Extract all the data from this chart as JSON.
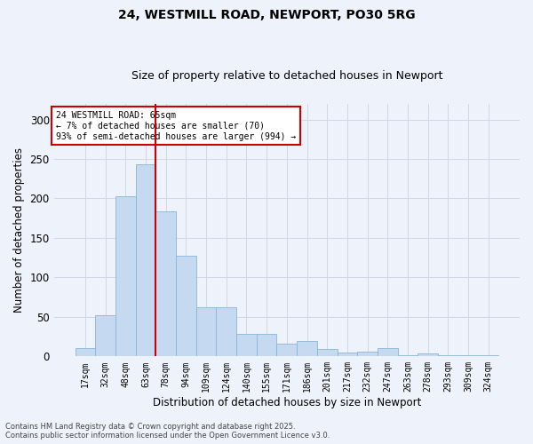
{
  "title1": "24, WESTMILL ROAD, NEWPORT, PO30 5RG",
  "title2": "Size of property relative to detached houses in Newport",
  "xlabel": "Distribution of detached houses by size in Newport",
  "ylabel": "Number of detached properties",
  "categories": [
    "17sqm",
    "32sqm",
    "48sqm",
    "63sqm",
    "78sqm",
    "94sqm",
    "109sqm",
    "124sqm",
    "140sqm",
    "155sqm",
    "171sqm",
    "186sqm",
    "201sqm",
    "217sqm",
    "232sqm",
    "247sqm",
    "263sqm",
    "278sqm",
    "293sqm",
    "309sqm",
    "324sqm"
  ],
  "values": [
    10,
    52,
    203,
    243,
    184,
    128,
    62,
    62,
    29,
    29,
    16,
    20,
    9,
    5,
    6,
    10,
    2,
    4,
    1,
    1,
    1
  ],
  "bar_color": "#c5d9f1",
  "bar_edge_color": "#8ab4d8",
  "grid_color": "#d0d8e8",
  "background_color": "#eef2fa",
  "vline_color": "#cc0000",
  "vline_index": 3.5,
  "annotation_text": "24 WESTMILL ROAD: 65sqm\n← 7% of detached houses are smaller (70)\n93% of semi-detached houses are larger (994) →",
  "annotation_box_color": "#ffffff",
  "annotation_box_edge": "#cc0000",
  "footer": "Contains HM Land Registry data © Crown copyright and database right 2025.\nContains public sector information licensed under the Open Government Licence v3.0.",
  "ylim": [
    0,
    320
  ],
  "yticks": [
    0,
    50,
    100,
    150,
    200,
    250,
    300
  ],
  "title1_fontsize": 10,
  "title2_fontsize": 9
}
